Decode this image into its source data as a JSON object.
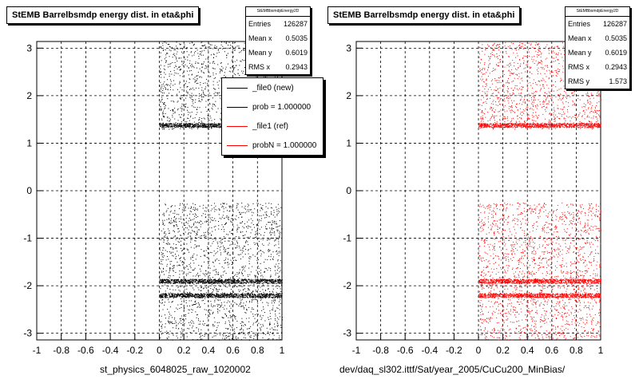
{
  "chart_data": [
    {
      "type": "scatter",
      "title": "StEMB Barrelbsmdp energy dist. in eta&phi",
      "xlabel": "st_physics_6048025_raw_1020002",
      "ylabel": "",
      "xlim": [
        -1,
        1
      ],
      "ylim": [
        -3.14,
        3.14
      ],
      "x_ticks": [
        "-1",
        "-0.8",
        "-0.6",
        "-0.4",
        "-0.2",
        "0",
        "0.2",
        "0.4",
        "0.6",
        "0.8",
        "1"
      ],
      "y_ticks": [
        "-3",
        "-2",
        "-1",
        "0",
        "1",
        "2",
        "3"
      ],
      "grid": true,
      "stats": {
        "name": "StEMBbsmdpEnergy2D",
        "rows": [
          {
            "label": "Entries",
            "value": "126287"
          },
          {
            "label": "Mean x",
            "value": "0.5035"
          },
          {
            "label": "Mean y",
            "value": "0.6019"
          },
          {
            "label": "RMS x",
            "value": "0.2943"
          }
        ]
      },
      "legend": {
        "placement": "top-right",
        "entries": [
          {
            "label": "_file0 (new)",
            "color": "#000000"
          },
          {
            "label": "prob = 1.000000",
            "color": "#000000"
          },
          {
            "label": "_file1 (ref)",
            "color": "#ff0000"
          },
          {
            "label": "probN = 1.000000",
            "color": "#ff0000"
          }
        ]
      },
      "color": "#000000",
      "populated_x_range": [
        0,
        1
      ],
      "populated_y_ranges": [
        [
          -3.14,
          -0.25
        ],
        [
          1.3,
          3.14
        ]
      ],
      "dense_phi_bands": [
        1.38,
        -1.9,
        -2.2
      ]
    },
    {
      "type": "scatter",
      "title": "StEMB Barrelbsmdp energy dist. in eta&phi",
      "xlabel": "dev/daq_sl302.ittf/Sat/year_2005/CuCu200_MinBias/",
      "ylabel": "",
      "xlim": [
        -1,
        1
      ],
      "ylim": [
        -3.14,
        3.14
      ],
      "x_ticks": [
        "-1",
        "-0.8",
        "-0.6",
        "-0.4",
        "-0.2",
        "0",
        "0.2",
        "0.4",
        "0.6",
        "0.8",
        "1"
      ],
      "y_ticks": [
        "-3",
        "-2",
        "-1",
        "0",
        "1",
        "2",
        "3"
      ],
      "grid": true,
      "stats": {
        "name": "StEMBbsmdpEnergy2D",
        "rows": [
          {
            "label": "Entries",
            "value": "126287"
          },
          {
            "label": "Mean x",
            "value": "0.5035"
          },
          {
            "label": "Mean y",
            "value": "0.6019"
          },
          {
            "label": "RMS x",
            "value": "0.2943"
          },
          {
            "label": "RMS y",
            "value": "1.573"
          }
        ]
      },
      "color": "#ff0000",
      "populated_x_range": [
        0,
        1
      ],
      "populated_y_ranges": [
        [
          -3.14,
          -0.25
        ],
        [
          1.3,
          3.14
        ]
      ],
      "dense_phi_bands": [
        1.38,
        -1.9,
        -2.2
      ]
    }
  ]
}
